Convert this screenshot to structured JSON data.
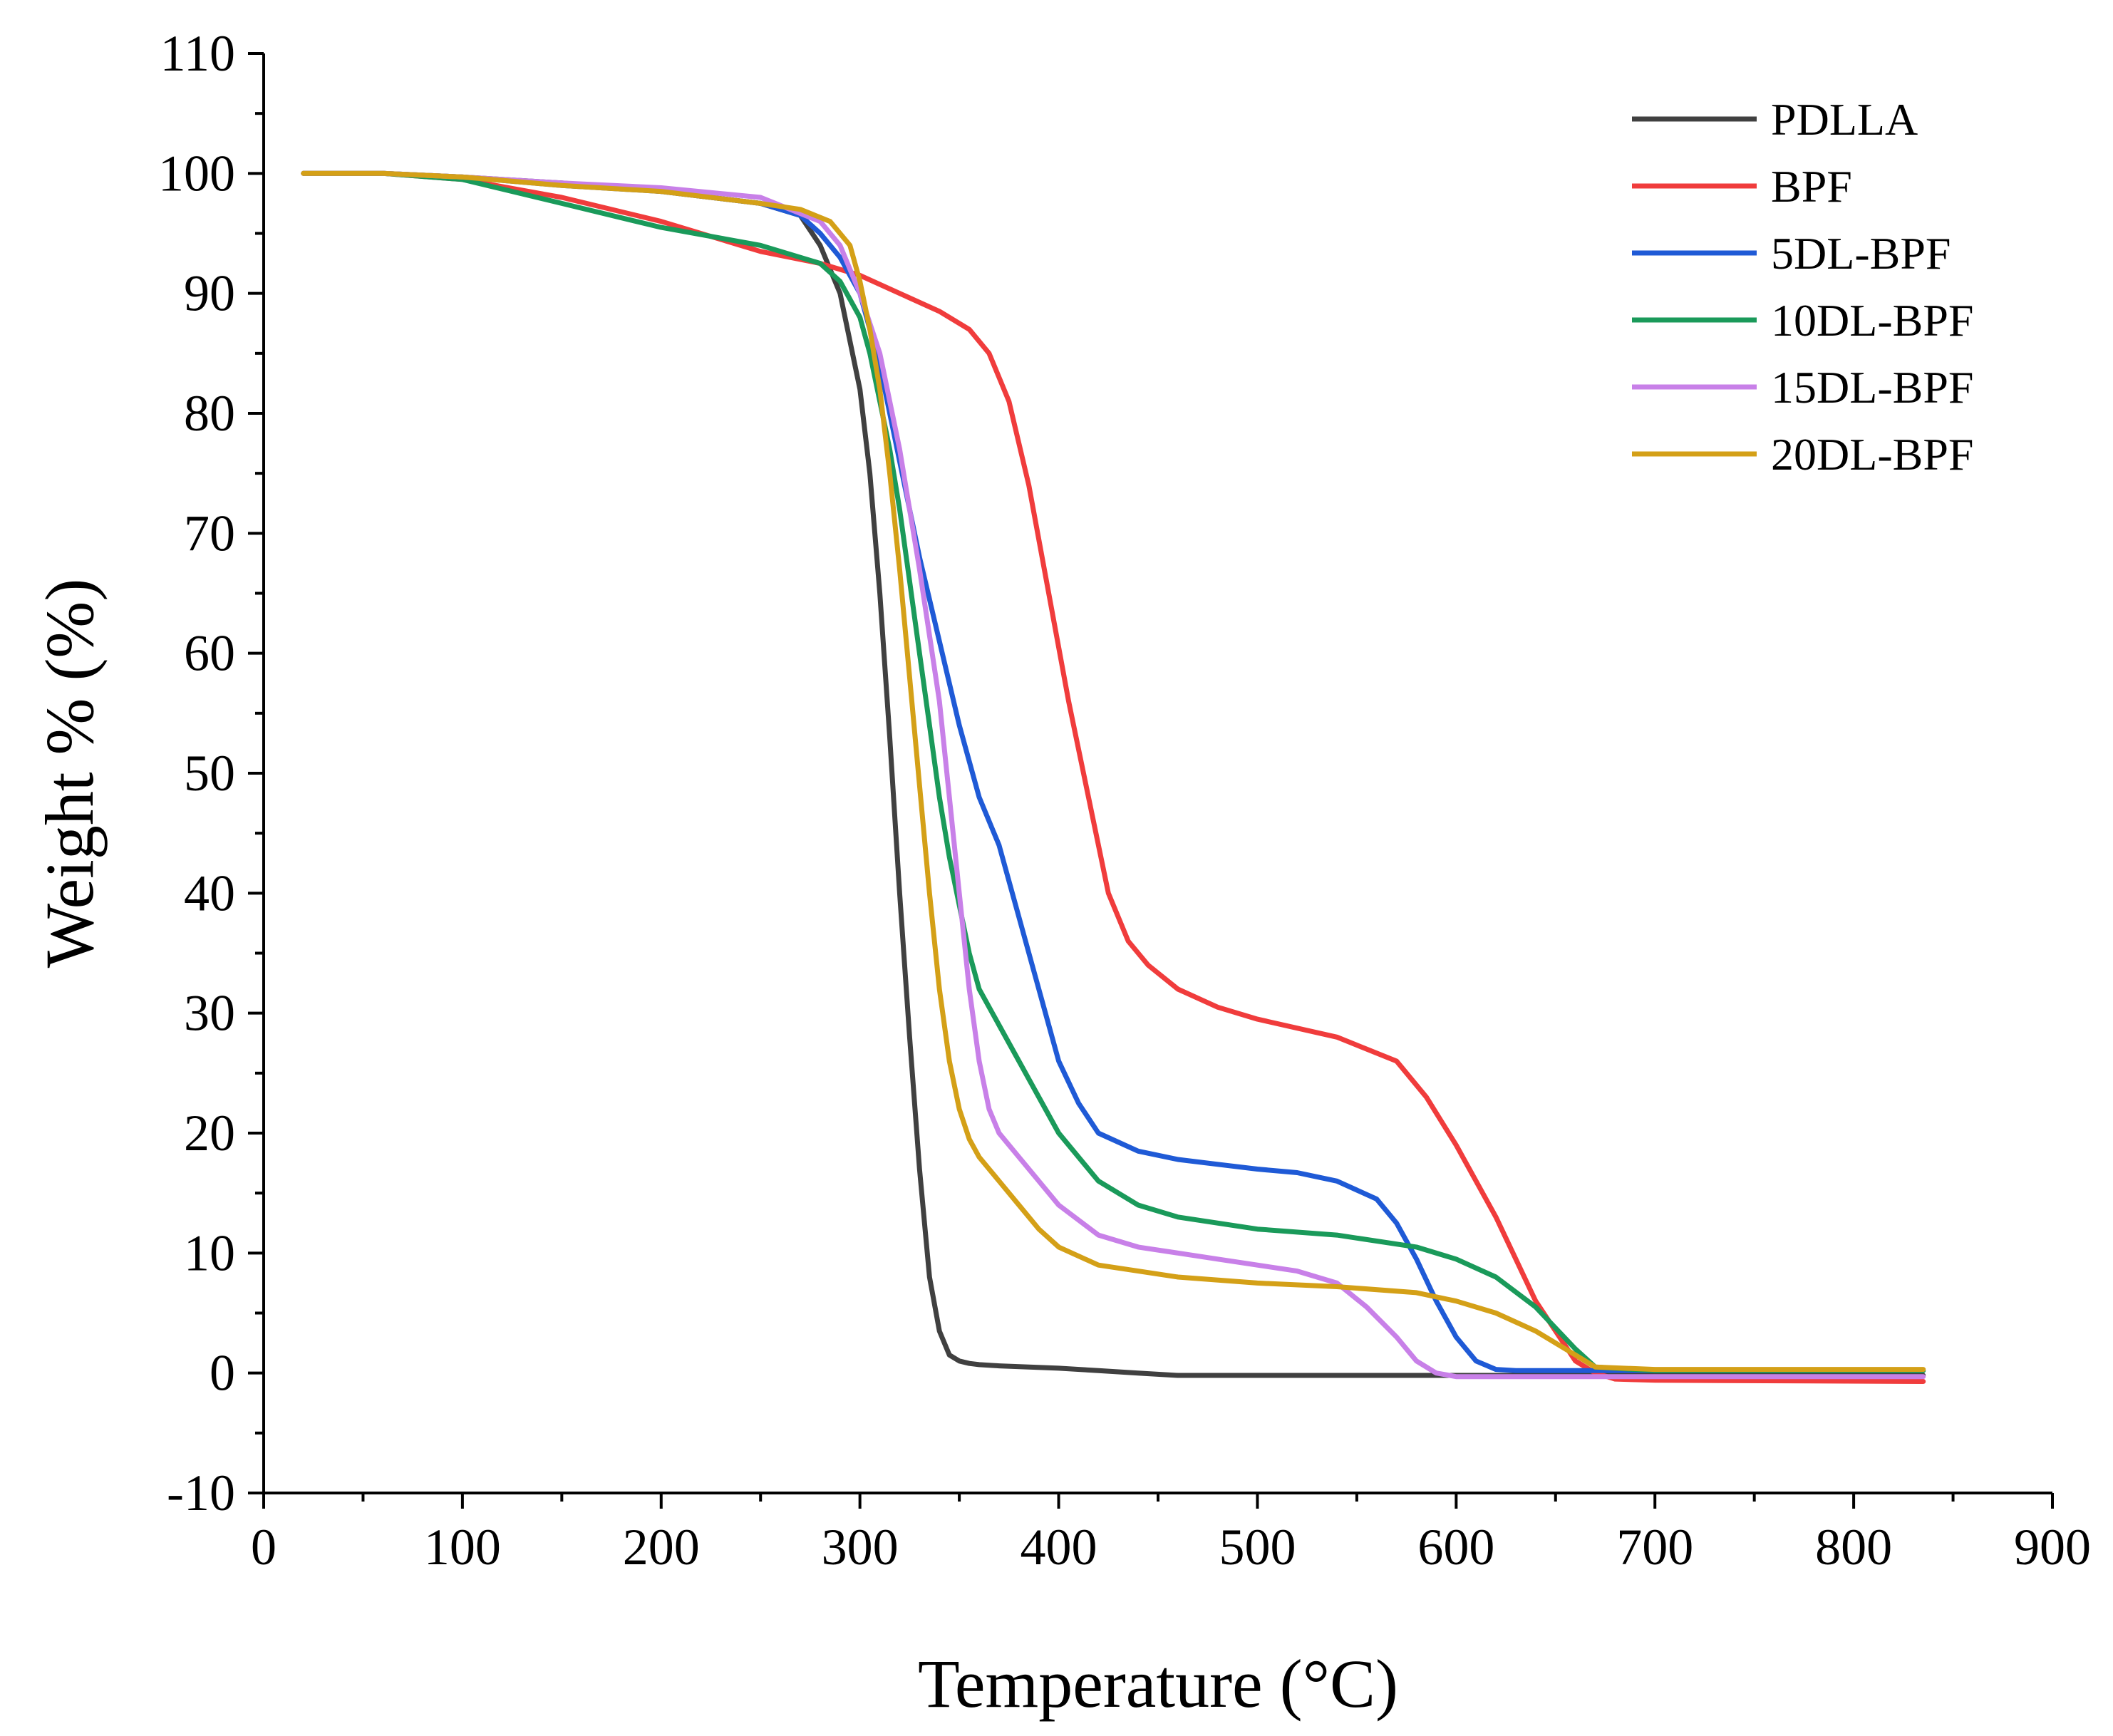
{
  "chart_data": {
    "type": "line",
    "title": "",
    "xlabel": "Temperature (°C)",
    "ylabel": "Weight % (%)",
    "xlim": [
      0,
      900
    ],
    "ylim": [
      -10,
      110
    ],
    "x_ticks": [
      0,
      100,
      200,
      300,
      400,
      500,
      600,
      700,
      800,
      900
    ],
    "x_tick_labels": [
      "0",
      "100",
      "200",
      "300",
      "400",
      "500",
      "600",
      "700",
      "800",
      "900"
    ],
    "y_ticks": [
      -10,
      0,
      10,
      20,
      30,
      40,
      50,
      60,
      70,
      80,
      90,
      100,
      110
    ],
    "y_tick_labels": [
      "-10",
      "0",
      "10",
      "20",
      "30",
      "40",
      "50",
      "60",
      "70",
      "80",
      "90",
      "100",
      "110"
    ],
    "grid": false,
    "legend_position": "top-right",
    "series": [
      {
        "name": "PDLLA",
        "color": "#404040",
        "x": [
          20,
          60,
          100,
          150,
          200,
          250,
          270,
          280,
          290,
          300,
          305,
          310,
          315,
          320,
          325,
          330,
          335,
          340,
          345,
          350,
          355,
          360,
          370,
          400,
          420,
          440,
          460,
          500,
          600,
          700,
          835
        ],
        "y": [
          100,
          100,
          99.7,
          99.2,
          98.5,
          97.5,
          96.5,
          94,
          90,
          82,
          75,
          65,
          53,
          40,
          28,
          17,
          8,
          3.5,
          1.5,
          1,
          0.8,
          0.7,
          0.6,
          0.4,
          0.2,
          0,
          -0.2,
          -0.2,
          -0.2,
          -0.2,
          -0.2
        ]
      },
      {
        "name": "BPF",
        "color": "#f03c3c",
        "x": [
          20,
          60,
          100,
          150,
          200,
          250,
          280,
          300,
          320,
          340,
          355,
          365,
          375,
          385,
          395,
          405,
          415,
          425,
          435,
          445,
          460,
          480,
          500,
          540,
          570,
          585,
          600,
          620,
          640,
          660,
          670,
          680,
          700,
          835
        ],
        "y": [
          100,
          100,
          99.5,
          98,
          96,
          93.5,
          92.5,
          91.5,
          90,
          88.5,
          87,
          85,
          81,
          74,
          65,
          56,
          48,
          40,
          36,
          34,
          32,
          30.5,
          29.5,
          28,
          26,
          23,
          19,
          13,
          6,
          1,
          0,
          -0.5,
          -0.6,
          -0.7
        ]
      },
      {
        "name": "5DL-BPF",
        "color": "#1f5ad6",
        "x": [
          20,
          60,
          100,
          150,
          200,
          250,
          270,
          280,
          290,
          300,
          310,
          320,
          330,
          340,
          350,
          360,
          370,
          380,
          390,
          400,
          410,
          420,
          440,
          460,
          480,
          500,
          520,
          540,
          560,
          570,
          580,
          590,
          600,
          610,
          620,
          630,
          700,
          835
        ],
        "y": [
          100,
          100,
          99.7,
          99,
          98.5,
          97.5,
          96.5,
          95,
          93,
          90,
          84,
          76,
          68,
          61,
          54,
          48,
          44,
          38,
          32,
          26,
          22.5,
          20,
          18.5,
          17.8,
          17.4,
          17,
          16.7,
          16,
          14.5,
          12.5,
          9.5,
          6,
          3,
          1,
          0.3,
          0.2,
          0.2,
          0.2
        ]
      },
      {
        "name": "10DL-BPF",
        "color": "#1a9a5a",
        "x": [
          20,
          60,
          100,
          150,
          200,
          250,
          280,
          290,
          300,
          305,
          310,
          315,
          320,
          325,
          330,
          335,
          340,
          345,
          350,
          355,
          360,
          370,
          380,
          390,
          400,
          420,
          440,
          460,
          500,
          540,
          580,
          600,
          620,
          640,
          660,
          670,
          700,
          835
        ],
        "y": [
          100,
          100,
          99.5,
          97.5,
          95.5,
          94,
          92.5,
          91,
          88,
          85,
          81,
          77,
          72,
          66,
          60,
          54,
          48,
          43,
          39,
          35,
          32,
          29,
          26,
          23,
          20,
          16,
          14,
          13,
          12,
          11.5,
          10.5,
          9.5,
          8,
          5.5,
          2,
          0.5,
          0.2,
          0.2
        ]
      },
      {
        "name": "15DL-BPF",
        "color": "#c880e8",
        "x": [
          20,
          60,
          100,
          150,
          200,
          250,
          280,
          290,
          300,
          310,
          320,
          330,
          340,
          345,
          350,
          355,
          360,
          365,
          370,
          380,
          390,
          400,
          420,
          440,
          460,
          480,
          500,
          520,
          540,
          555,
          570,
          580,
          590,
          600,
          700,
          835
        ],
        "y": [
          100,
          100,
          99.7,
          99.2,
          98.8,
          98,
          96,
          94,
          90,
          85,
          77,
          67,
          56,
          48,
          40,
          32,
          26,
          22,
          20,
          18,
          16,
          14,
          11.5,
          10.5,
          10,
          9.5,
          9,
          8.5,
          7.5,
          5.5,
          3,
          1,
          0,
          -0.3,
          -0.3,
          -0.3
        ]
      },
      {
        "name": "20DL-BPF",
        "color": "#d4a017",
        "x": [
          20,
          60,
          100,
          150,
          200,
          250,
          270,
          285,
          295,
          300,
          305,
          310,
          315,
          320,
          325,
          330,
          335,
          340,
          345,
          350,
          355,
          360,
          370,
          380,
          390,
          400,
          420,
          440,
          460,
          500,
          540,
          580,
          600,
          620,
          640,
          660,
          670,
          700,
          835
        ],
        "y": [
          100,
          100,
          99.7,
          99,
          98.5,
          97.5,
          97,
          96,
          94,
          91,
          87,
          82,
          75,
          67,
          58,
          49,
          40,
          32,
          26,
          22,
          19.5,
          18,
          16,
          14,
          12,
          10.5,
          9,
          8.5,
          8,
          7.5,
          7.2,
          6.7,
          6,
          5,
          3.5,
          1.5,
          0.5,
          0.3,
          0.3
        ]
      }
    ]
  }
}
